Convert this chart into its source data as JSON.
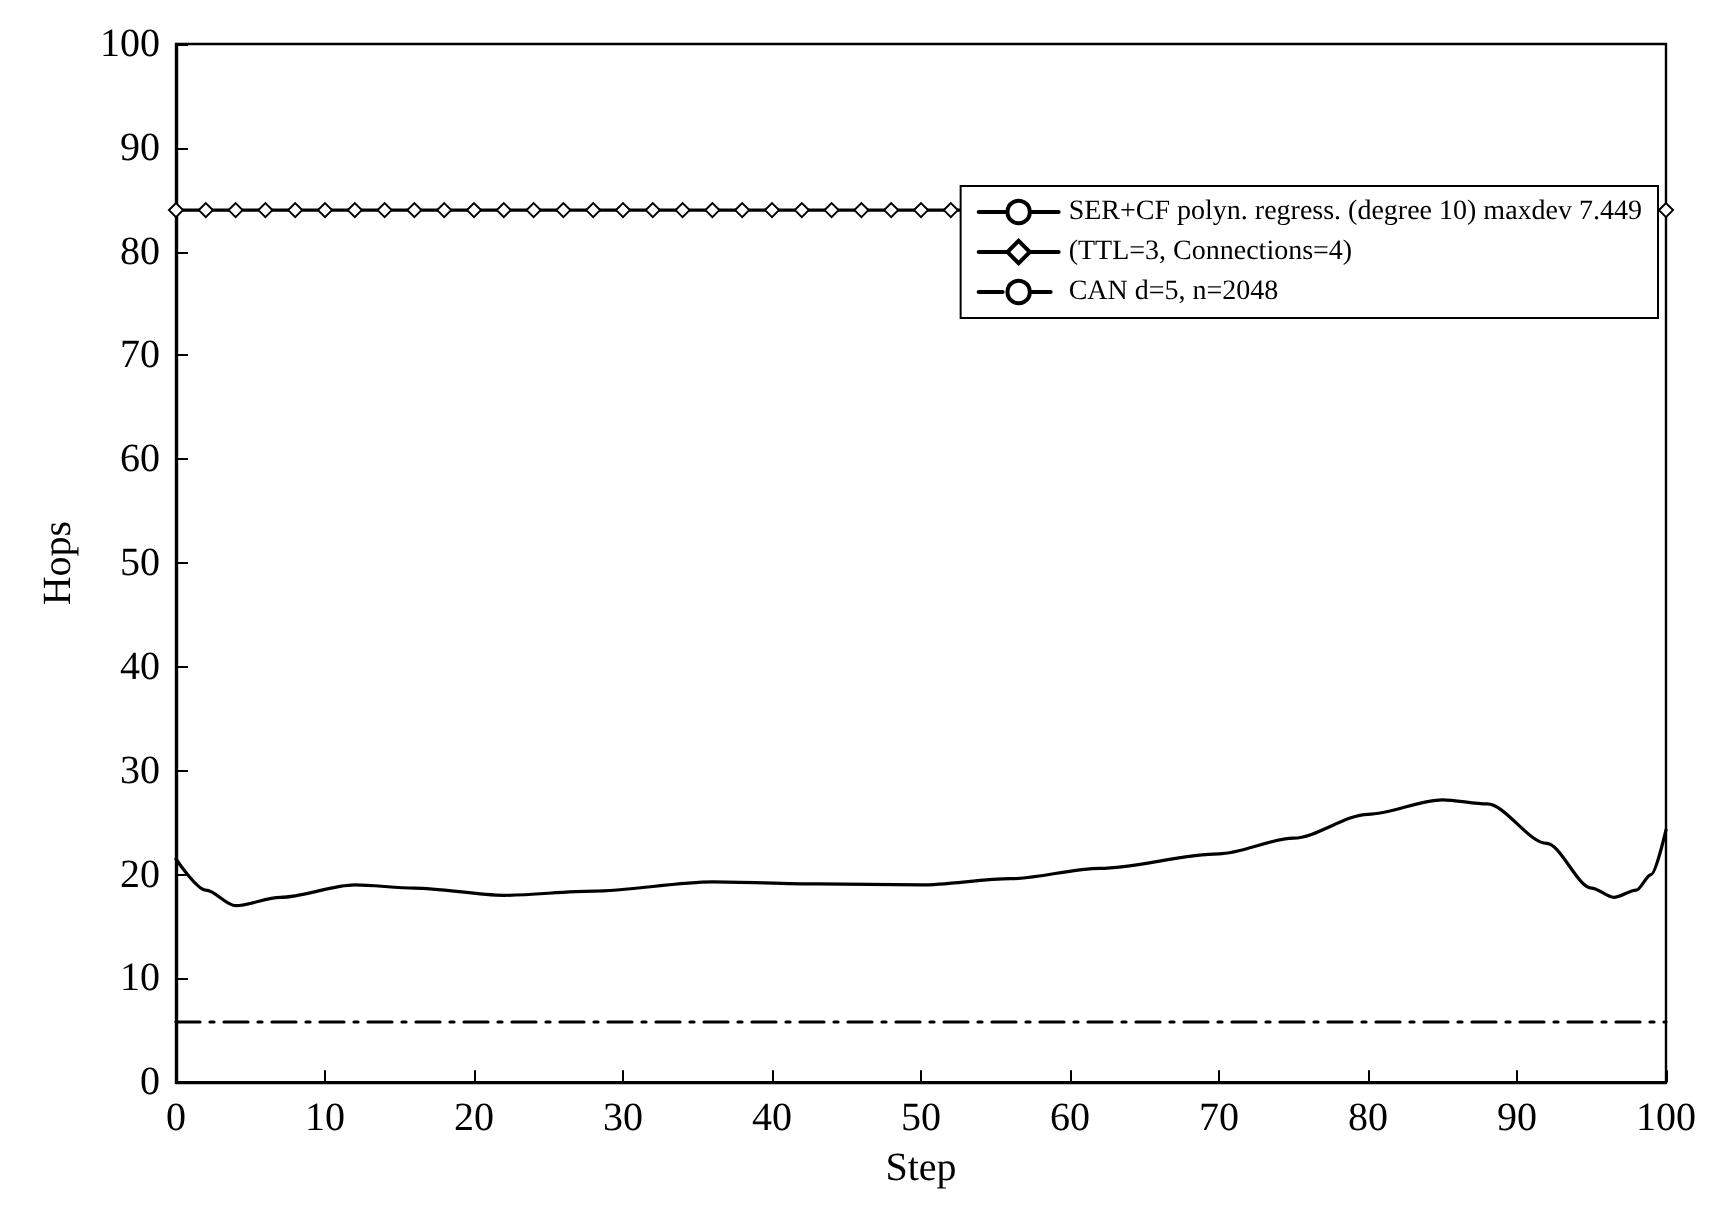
{
  "chart_data": {
    "type": "line",
    "xlabel": "Step",
    "ylabel": "Hops",
    "xlim": [
      0,
      100
    ],
    "ylim": [
      0,
      100
    ],
    "xticks": [
      0,
      10,
      20,
      30,
      40,
      50,
      60,
      70,
      80,
      90,
      100
    ],
    "yticks": [
      0,
      10,
      20,
      30,
      40,
      50,
      60,
      70,
      80,
      90,
      100
    ],
    "grid": false,
    "legend": "top right",
    "x": [
      0,
      2,
      4,
      7,
      12,
      16,
      22,
      28,
      36,
      43,
      50,
      56,
      62,
      70,
      75,
      80,
      85,
      88,
      92,
      95,
      96.5,
      98,
      99,
      100
    ],
    "series": [
      {
        "name": "SER+CF polyn. regress. (degree 10) maxdev 7.449",
        "color": "#000000",
        "marker": "none",
        "line_style": "solid",
        "values": [
          21.5,
          18.5,
          17,
          17.8,
          19,
          18.7,
          18,
          18.4,
          19.3,
          19.1,
          19,
          19.6,
          20.6,
          22,
          23.5,
          25.8,
          27.2,
          26.8,
          23,
          18.7,
          17.8,
          18.5,
          20,
          24.3
        ]
      },
      {
        "name": "(TTL=3, Connections=4)",
        "color": "#000000",
        "marker": "diamond",
        "line_style": "solid",
        "x": [
          0,
          2,
          4,
          6,
          8,
          10,
          12,
          14,
          16,
          18,
          20,
          22,
          24,
          26,
          28,
          30,
          32,
          34,
          36,
          38,
          40,
          42,
          44,
          46,
          48,
          50,
          52,
          54,
          56,
          58,
          60,
          62,
          64,
          66,
          68,
          70,
          72,
          74,
          76,
          78,
          80,
          82,
          84,
          86,
          88,
          90,
          92,
          94,
          96,
          98,
          100
        ],
        "values": [
          84,
          84,
          84,
          84,
          84,
          84,
          84,
          84,
          84,
          84,
          84,
          84,
          84,
          84,
          84,
          84,
          84,
          84,
          84,
          84,
          84,
          84,
          84,
          84,
          84,
          84,
          84,
          84,
          84,
          84,
          84,
          84,
          84,
          84,
          84,
          84,
          84,
          84,
          84,
          84,
          84,
          84,
          84,
          84,
          84,
          84,
          84,
          84,
          84,
          84,
          84
        ]
      },
      {
        "name": "CAN d=5, n=2048",
        "color": "#000000",
        "marker": "none",
        "line_style": "dashed",
        "x": [
          0,
          100
        ],
        "values": [
          5.8,
          5.8
        ]
      }
    ]
  }
}
